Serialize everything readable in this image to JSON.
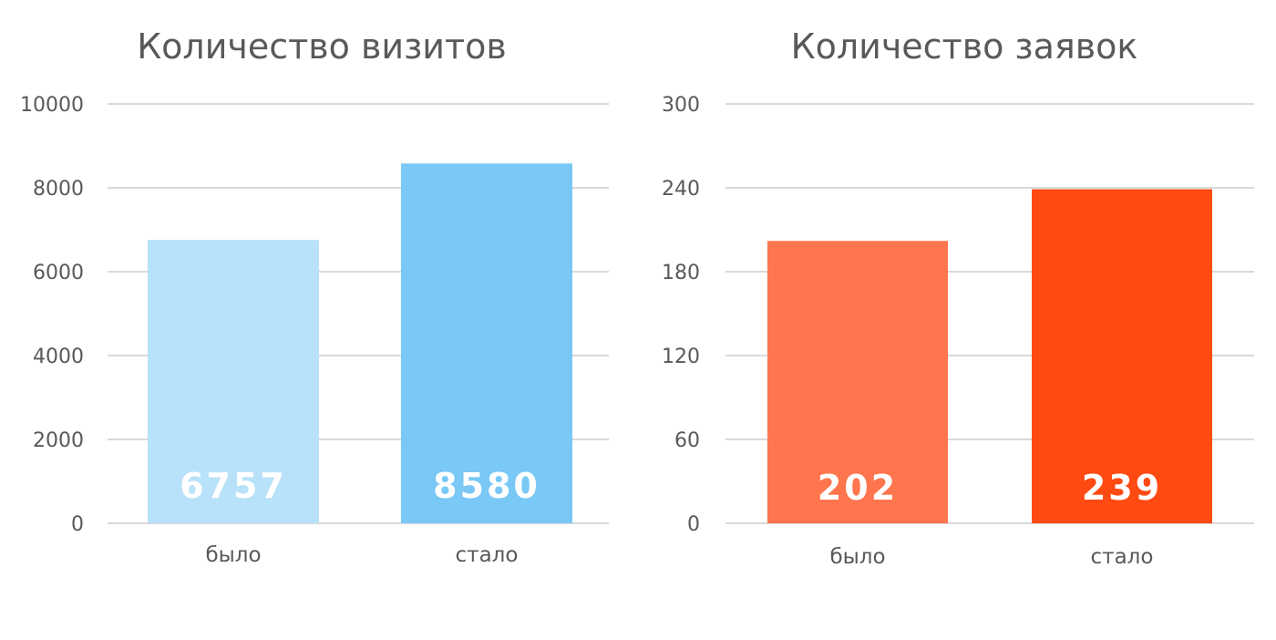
{
  "chart_data": [
    {
      "type": "bar",
      "title": "Количество визитов",
      "categories": [
        "было",
        "стало"
      ],
      "values": [
        6757,
        8580
      ],
      "data_labels": [
        "6757",
        "8580"
      ],
      "bar_colors": [
        "#b8e2f9",
        "#79c8f5"
      ],
      "ylim": [
        0,
        10000
      ],
      "yticks": [
        0,
        2000,
        4000,
        6000,
        8000,
        10000
      ],
      "ytick_labels": [
        "0",
        "2000",
        "4000",
        "6000",
        "8000",
        "10000"
      ],
      "grid": true,
      "legend": "none"
    },
    {
      "type": "bar",
      "title": "Количество заявок",
      "categories": [
        "было",
        "стало"
      ],
      "values": [
        202,
        239
      ],
      "data_labels": [
        "202",
        "239"
      ],
      "bar_colors": [
        "#ff754d",
        "#ff4a12"
      ],
      "ylim": [
        0,
        300
      ],
      "yticks": [
        0,
        60,
        120,
        180,
        240,
        300
      ],
      "ytick_labels": [
        "0",
        "60",
        "120",
        "180",
        "240",
        "300"
      ],
      "grid": true,
      "legend": "none"
    }
  ]
}
